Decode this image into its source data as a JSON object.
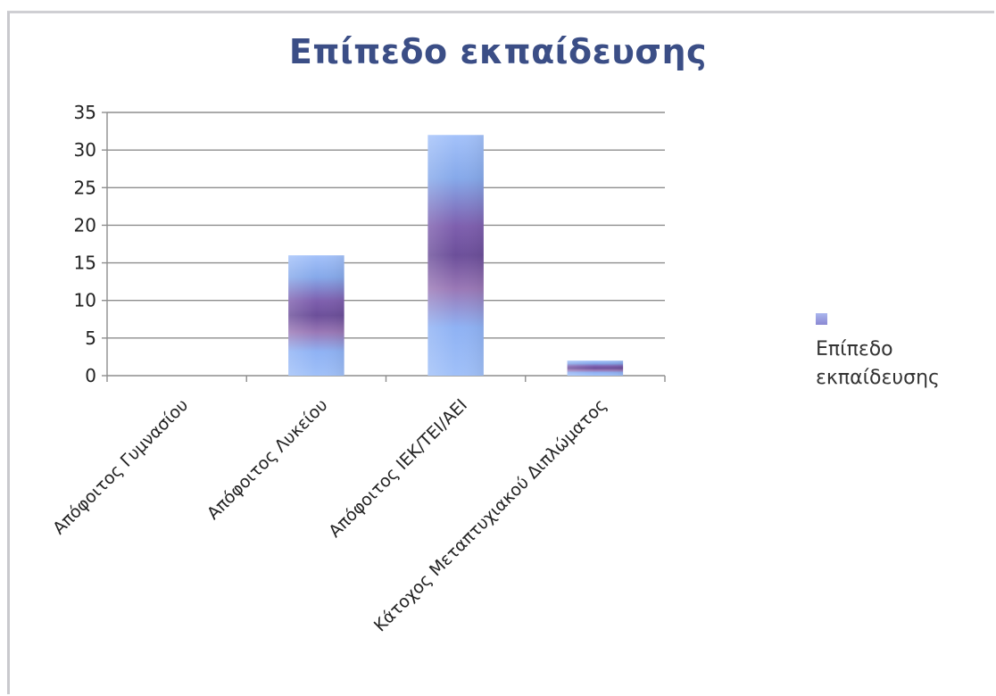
{
  "chart_data": {
    "type": "bar",
    "title": "Επίπεδο εκπαίδευσης",
    "categories": [
      "Απόφοιτος Γυμνασίου",
      "Απόφοιτος Λυκείου",
      "Απόφοιτος ΙΕΚ/ΤΕΙ/ΑΕΙ",
      "Κάτοχος Μεταπτυχιακού Διπλώματος"
    ],
    "series": [
      {
        "name": "Επίπεδο εκπαίδευσης",
        "values": [
          0,
          16,
          32,
          2
        ]
      }
    ],
    "ylim": [
      0,
      35
    ],
    "yticks": [
      0,
      5,
      10,
      15,
      20,
      25,
      30,
      35
    ],
    "grid": true,
    "legend": "right",
    "colors": {
      "bar_light": "#8fb2f4",
      "bar_dark": "#6c4f9a",
      "grid": "#8e8e8e",
      "title": "#3b4e86"
    }
  }
}
